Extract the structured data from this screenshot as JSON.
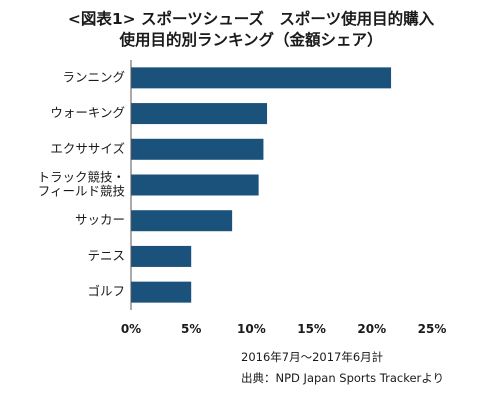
{
  "title_line1": "<図表1> スポーツシューズ　スポーツ使用目的購入",
  "title_line2": "使用目的別ランキング（金額シェア）",
  "period": "2016年7月～2017年6月計",
  "source": "出典：NPD Japan Sports Trackerより",
  "colors": {
    "bar": "#1b527c"
  },
  "chart_data": {
    "type": "bar",
    "orientation": "horizontal",
    "categories": [
      [
        "ランニング"
      ],
      [
        "ウォーキング"
      ],
      [
        "エクササイズ"
      ],
      [
        "トラック競技・",
        "フィールド競技"
      ],
      [
        "サッカー"
      ],
      [
        "テニス"
      ],
      [
        "ゴルフ"
      ]
    ],
    "values": [
      21.6,
      11.3,
      11.0,
      10.6,
      8.4,
      5.0,
      5.0
    ],
    "xlim": [
      0,
      25
    ],
    "x_ticks": [
      0,
      5,
      10,
      15,
      20,
      25
    ],
    "x_tick_labels": [
      "0%",
      "5%",
      "10%",
      "15%",
      "20%",
      "25%"
    ],
    "grid": false,
    "title": "<図表1> スポーツシューズ　スポーツ使用目的購入 使用目的別ランキング（金額シェア）"
  }
}
